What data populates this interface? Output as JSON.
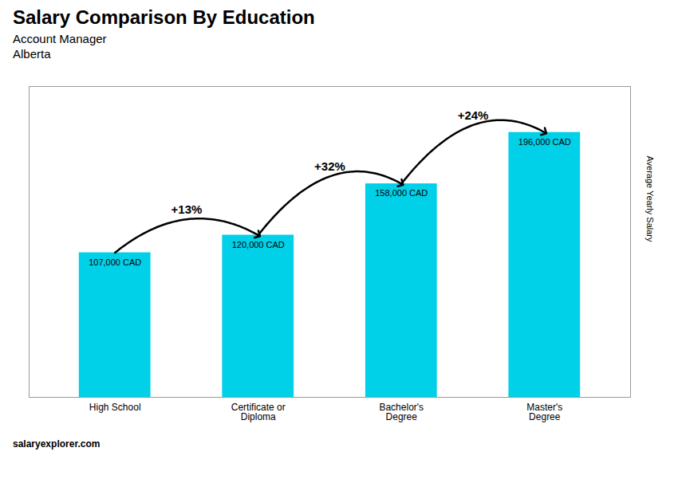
{
  "chart_data": {
    "type": "bar",
    "title": "Salary Comparison By Education",
    "subtitle": [
      "Account Manager",
      "Alberta"
    ],
    "ylabel": "Average Yearly Salary",
    "categories": [
      "High School",
      "Certificate or\nDiploma",
      "Bachelor's\nDegree",
      "Master's\nDegree"
    ],
    "values": [
      107000,
      120000,
      158000,
      196000
    ],
    "value_labels": [
      "107,000 CAD",
      "120,000 CAD",
      "158,000 CAD",
      "196,000 CAD"
    ],
    "data_labels": true,
    "ylim": [
      0,
      230000
    ],
    "tick_labels": "x",
    "color": "#00d0e8",
    "annotations": [
      "+13%",
      "+32%",
      "+24%"
    ],
    "caption": "salaryexplorer.com"
  }
}
